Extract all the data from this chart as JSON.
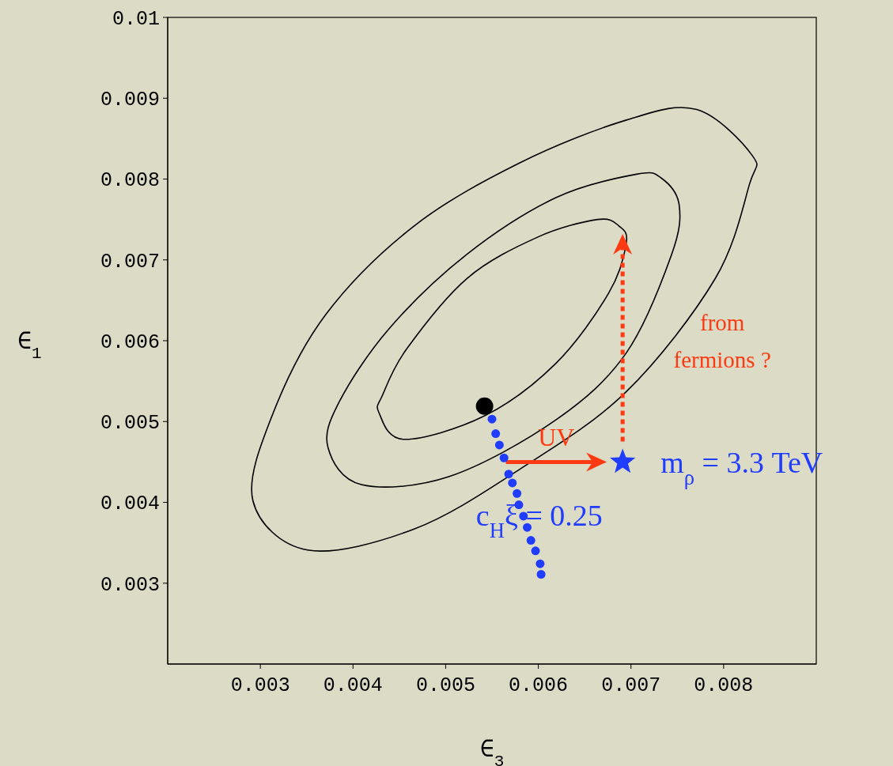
{
  "chart_data": {
    "type": "scatter",
    "xlabel": "∈$_{3}$",
    "ylabel": "∈$_{1}$",
    "xlim": [
      0.002,
      0.009
    ],
    "ylim": [
      0.002,
      0.01
    ],
    "xticks": [
      0.003,
      0.004,
      0.005,
      0.006,
      0.007,
      0.008
    ],
    "yticks": [
      0.003,
      0.004,
      0.005,
      0.006,
      0.007,
      0.008,
      0.009,
      0.01
    ],
    "series": [
      {
        "marker": "circle",
        "color": "#000000",
        "x": [
          0.00542
        ],
        "values": [
          0.00519
        ]
      },
      {
        "marker": "circle",
        "name": "c$_{H}$ξ = 0.25",
        "color": "#1f3cff",
        "x": [
          0.0055,
          0.00554,
          0.00558,
          0.00563,
          0.00568,
          0.00572,
          0.00577,
          0.00579,
          0.00584,
          0.00588,
          0.00592,
          0.00597,
          0.00602,
          0.00603
        ],
        "values": [
          0.00503,
          0.00485,
          0.00471,
          0.00455,
          0.00435,
          0.00424,
          0.00411,
          0.00397,
          0.00383,
          0.00369,
          0.00353,
          0.0034,
          0.00324,
          0.00311
        ]
      },
      {
        "marker": "star",
        "name": "m$_{ρ}$ = 3.3 TeV",
        "color": "#1f3cff",
        "x": [
          0.00691
        ],
        "values": [
          0.0045
        ]
      }
    ],
    "annotations": [
      {
        "text": "UV",
        "x": 0.00565,
        "y": 0.0045
      },
      "from fermions ?"
    ]
  }
}
